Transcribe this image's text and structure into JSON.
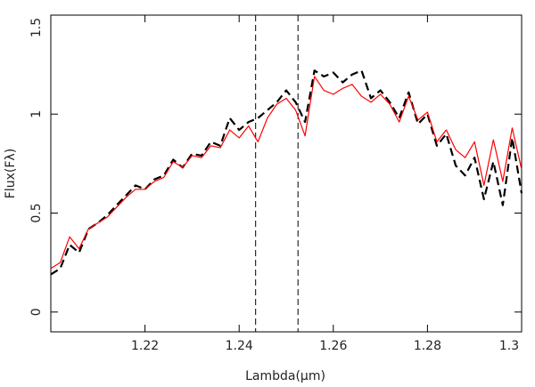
{
  "chart_data": {
    "type": "line",
    "xlabel": "Lambda(μm)",
    "ylabel": "Flux(Fλ)",
    "x": [
      1.2,
      1.202,
      1.204,
      1.206,
      1.208,
      1.21,
      1.212,
      1.214,
      1.216,
      1.218,
      1.22,
      1.222,
      1.224,
      1.226,
      1.228,
      1.23,
      1.232,
      1.234,
      1.236,
      1.238,
      1.24,
      1.242,
      1.244,
      1.246,
      1.248,
      1.25,
      1.252,
      1.254,
      1.256,
      1.258,
      1.26,
      1.262,
      1.264,
      1.266,
      1.268,
      1.27,
      1.272,
      1.274,
      1.276,
      1.278,
      1.28,
      1.282,
      1.284,
      1.286,
      1.288,
      1.29,
      1.292,
      1.294,
      1.296,
      1.298,
      1.3
    ],
    "series": [
      {
        "color": "#000000",
        "dashed": true,
        "values": [
          0.19,
          0.22,
          0.34,
          0.3,
          0.42,
          0.45,
          0.49,
          0.54,
          0.59,
          0.64,
          0.62,
          0.67,
          0.69,
          0.77,
          0.73,
          0.8,
          0.79,
          0.86,
          0.84,
          0.98,
          0.92,
          0.96,
          0.98,
          1.02,
          1.06,
          1.12,
          1.06,
          0.96,
          1.22,
          1.19,
          1.21,
          1.16,
          1.2,
          1.22,
          1.08,
          1.12,
          1.06,
          0.98,
          1.11,
          0.95,
          1.0,
          0.84,
          0.9,
          0.74,
          0.69,
          0.78,
          0.57,
          0.76,
          0.54,
          0.88,
          0.6
        ]
      },
      {
        "color": "#ff0000",
        "dashed": false,
        "values": [
          0.22,
          0.25,
          0.38,
          0.32,
          0.42,
          0.45,
          0.48,
          0.53,
          0.58,
          0.62,
          0.62,
          0.66,
          0.68,
          0.76,
          0.73,
          0.79,
          0.78,
          0.84,
          0.83,
          0.92,
          0.88,
          0.94,
          0.86,
          0.98,
          1.05,
          1.08,
          1.02,
          0.89,
          1.19,
          1.12,
          1.1,
          1.13,
          1.15,
          1.09,
          1.06,
          1.1,
          1.05,
          0.96,
          1.09,
          0.97,
          1.01,
          0.86,
          0.92,
          0.82,
          0.78,
          0.86,
          0.64,
          0.87,
          0.66,
          0.93,
          0.72
        ]
      }
    ],
    "vlines": [
      1.2435,
      1.2525
    ],
    "xlim": [
      1.2,
      1.3
    ],
    "xticks": [
      1.22,
      1.24,
      1.26,
      1.28,
      1.3
    ],
    "ylim": [
      -0.1,
      1.5
    ],
    "yticks": [
      0,
      0.5,
      1,
      1.5
    ]
  }
}
